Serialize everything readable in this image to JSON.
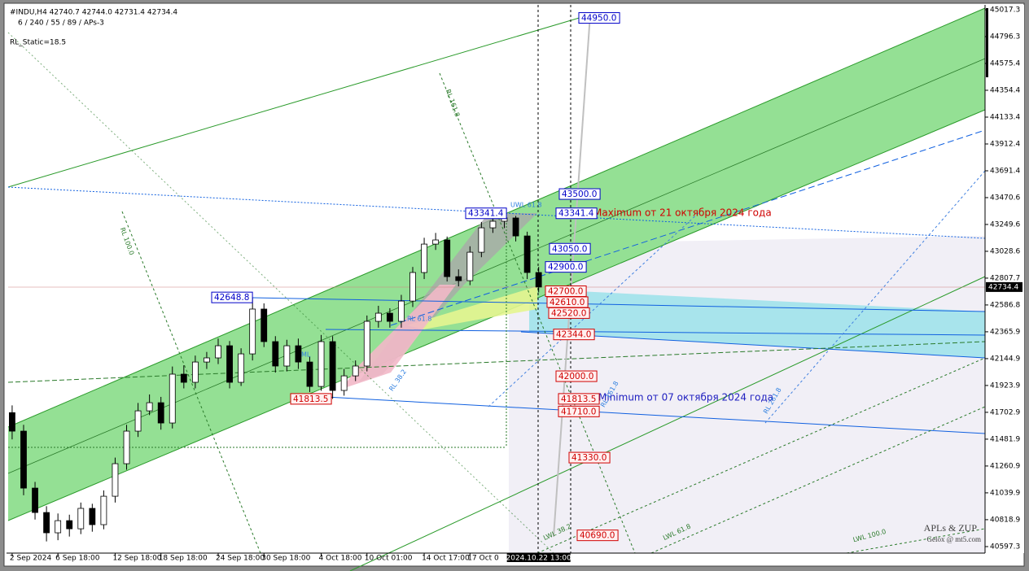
{
  "chart_data": {
    "type": "candlestick",
    "header": "#INDU,H4  42740.7 42744.0 42731.4 42734.4",
    "indicator": "6 / 240 / 55 / 89 / APs-3",
    "static_label": "RL_Static=18.5",
    "watermark": "APLs & ZUP",
    "watermark_sub": "Gelox @ mt5.com",
    "xlim": [
      -0.35,
      85
    ],
    "ylim": [
      40597.3,
      45017.3
    ],
    "yticks": [
      45017.3,
      44796.3,
      44575.4,
      44354.4,
      44133.4,
      43912.4,
      43691.4,
      43470.6,
      43249.6,
      43028.6,
      42807.7,
      42586.8,
      42365.9,
      42144.9,
      41923.9,
      41702.9,
      41481.9,
      41260.9,
      41039.9,
      40818.9,
      40597.3
    ],
    "xticks": [
      {
        "value": 0,
        "label": "2 Sep 2024"
      },
      {
        "value": 4,
        "label": "6 Sep 18:00"
      },
      {
        "value": 9,
        "label": "12 Sep 18:00"
      },
      {
        "value": 13,
        "label": "18 Sep 18:00"
      },
      {
        "value": 18,
        "label": "24 Sep 18:00"
      },
      {
        "value": 22,
        "label": "30 Sep 18:00"
      },
      {
        "value": 27,
        "label": "4 Oct 18:00"
      },
      {
        "value": 31,
        "label": "10 Oct 01:00"
      },
      {
        "value": 36,
        "label": "14 Oct 17:00"
      },
      {
        "value": 40,
        "label": "17 Oct 0"
      }
    ],
    "cursor": {
      "value": 46,
      "label": "2024.10.22 13:00"
    },
    "last_price": 42734.4,
    "grid": false,
    "candle_up_color": "#ffffff",
    "candle_down_color": "#000000",
    "open": [
      41700,
      41548,
      41079,
      40878,
      40711,
      40811,
      40744,
      40912,
      40778,
      41012,
      41280,
      41548,
      41715,
      41782,
      41615,
      42017,
      41950,
      42117,
      42151,
      42251,
      41950,
      42184,
      42553,
      42285,
      42084,
      42251,
      42117,
      41916,
      42285,
      41883,
      42003,
      42084,
      42452,
      42519,
      42452,
      42619,
      42854,
      43088,
      43122,
      42820,
      42787,
      43021,
      43222,
      43276,
      43303,
      43155,
      42854
    ],
    "high": [
      41760,
      41600,
      41130,
      40930,
      40870,
      40860,
      40960,
      40950,
      41060,
      41330,
      41600,
      41780,
      41850,
      41830,
      42080,
      42090,
      42170,
      42200,
      42310,
      42290,
      42230,
      42648.8,
      42600,
      42330,
      42300,
      42310,
      42160,
      42340,
      42330,
      42060,
      42130,
      42500,
      42580,
      42560,
      42670,
      42900,
      43140,
      43180,
      43150,
      42880,
      43070,
      43270,
      43320,
      43341.4,
      43320,
      43190,
      42900
    ],
    "low": [
      41480,
      41020,
      40820,
      40640,
      40650,
      40680,
      40700,
      40720,
      40740,
      40960,
      41230,
      41500,
      41680,
      41560,
      41570,
      41900,
      41900,
      42060,
      42100,
      41900,
      41920,
      42130,
      42240,
      42030,
      42040,
      42060,
      41870,
      41880,
      41813.5,
      41840,
      41960,
      42040,
      42400,
      42400,
      42400,
      42570,
      42800,
      43040,
      42780,
      42740,
      42750,
      42980,
      43180,
      43220,
      43110,
      42800,
      42690
    ],
    "close": [
      41548,
      41079,
      40878,
      40711,
      40811,
      40744,
      40912,
      40778,
      41012,
      41280,
      41548,
      41715,
      41782,
      41615,
      42017,
      41950,
      42117,
      42151,
      42251,
      41950,
      42184,
      42553,
      42285,
      42084,
      42251,
      42117,
      41916,
      42285,
      41883,
      42003,
      42084,
      42452,
      42519,
      42452,
      42619,
      42854,
      43088,
      43122,
      42820,
      42787,
      43021,
      43222,
      43276,
      43303,
      43155,
      42854,
      42734.4
    ],
    "price_labels": [
      {
        "value": 44950.0,
        "label": "44950.0",
        "color": "#0000c8"
      },
      {
        "value": 43500.0,
        "label": "43500.0",
        "color": "#0000c8"
      },
      {
        "value": 43341.4,
        "label": "43341.4",
        "color": "#0000c8"
      },
      {
        "value": 43050.0,
        "label": "43050.0",
        "color": "#0000c8"
      },
      {
        "value": 42900.0,
        "label": "42900.0",
        "color": "#0000c8"
      },
      {
        "value": 42700.0,
        "label": "42700.0",
        "color": "#d00000"
      },
      {
        "value": 42610.0,
        "label": "42610.0",
        "color": "#d00000"
      },
      {
        "value": 42520.0,
        "label": "42520.0",
        "color": "#d00000"
      },
      {
        "value": 42344.0,
        "label": "42344.0",
        "color": "#d00000"
      },
      {
        "value": 42000.0,
        "label": "42000.0",
        "color": "#d00000"
      },
      {
        "value": 41813.5,
        "label": "41813.5",
        "color": "#d00000"
      },
      {
        "value": 41710.0,
        "label": "41710.0",
        "color": "#d00000"
      },
      {
        "value": 41330.0,
        "label": "41330.0",
        "color": "#d00000"
      },
      {
        "value": 40690.0,
        "label": "40690.0",
        "color": "#d00000"
      },
      {
        "value": 43341.4,
        "label": "43341.4",
        "color": "#0000c8"
      },
      {
        "value": 42648.8,
        "label": "42648.8",
        "color": "#0000c8"
      },
      {
        "value": 41813.5,
        "label": "41813.5",
        "color": "#d00000"
      }
    ],
    "annotations": [
      "Maximum от 21 октября 2024 года",
      "Minimum от 07 октября 2024 года",
      "RL 161.8",
      "RL 100.0",
      "UWL 61.8",
      "ML",
      "LWL 38.2",
      "LWL 61.8",
      "LWL 100.0",
      "RL 261.8",
      "RL 161.8",
      "RL 61.8",
      "RL 38.2"
    ]
  }
}
